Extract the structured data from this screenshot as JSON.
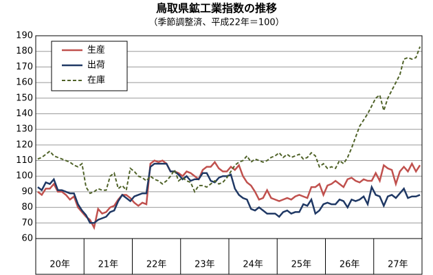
{
  "chart_data": {
    "type": "line",
    "title": "鳥取県鉱工業指数の推移",
    "subtitle": "（季節調整済、平成22年＝100）",
    "categories": [
      null,
      null,
      null,
      null,
      null,
      null,
      "20年",
      null,
      null,
      null,
      null,
      null,
      null,
      null,
      null,
      null,
      null,
      null,
      "21年",
      null,
      null,
      null,
      null,
      null,
      null,
      null,
      null,
      null,
      null,
      null,
      "22年",
      null,
      null,
      null,
      null,
      null,
      null,
      null,
      null,
      null,
      null,
      null,
      "23年",
      null,
      null,
      null,
      null,
      null,
      null,
      null,
      null,
      null,
      null,
      null,
      "24年",
      null,
      null,
      null,
      null,
      null,
      null,
      null,
      null,
      null,
      null,
      null,
      "25年",
      null,
      null,
      null,
      null,
      null,
      null,
      null,
      null,
      null,
      null,
      null,
      "26年",
      null,
      null,
      null,
      null,
      null,
      null,
      null,
      null,
      null,
      null,
      null,
      "27年",
      null,
      null,
      null,
      null,
      null
    ],
    "series": [
      {
        "name": "生産",
        "color": "#c0504d",
        "dashed": false,
        "values": [
          90,
          88,
          92,
          92,
          95,
          90,
          90,
          88,
          85,
          87,
          80,
          77,
          74,
          72,
          67,
          79,
          76,
          77,
          80,
          81,
          85,
          88,
          88,
          86,
          83,
          81,
          83,
          82,
          108,
          110,
          109,
          110,
          108,
          103,
          103,
          102,
          100,
          103,
          102,
          100,
          98,
          104,
          106,
          106,
          109,
          105,
          103,
          103,
          106,
          104,
          107,
          100,
          96,
          94,
          90,
          85,
          86,
          91,
          86,
          85,
          84,
          85,
          86,
          85,
          87,
          88,
          87,
          86,
          93,
          93,
          95,
          88,
          94,
          95,
          97,
          95,
          93,
          98,
          99,
          97,
          96,
          98,
          97,
          97,
          102,
          97,
          107,
          105,
          104,
          95,
          103,
          106,
          103,
          108,
          103,
          107
        ]
      },
      {
        "name": "出荷",
        "color": "#1f3864",
        "dashed": false,
        "values": [
          93,
          91,
          96,
          95,
          98,
          91,
          91,
          90,
          89,
          89,
          82,
          78,
          75,
          70,
          70,
          72,
          73,
          74,
          77,
          78,
          84,
          88,
          86,
          84,
          87,
          88,
          89,
          89,
          106,
          108,
          108,
          108,
          108,
          103,
          103,
          101,
          98,
          100,
          97,
          98,
          98,
          102,
          102,
          97,
          96,
          99,
          100,
          100,
          101,
          92,
          88,
          86,
          85,
          79,
          78,
          80,
          78,
          76,
          76,
          76,
          74,
          77,
          78,
          76,
          77,
          77,
          82,
          81,
          85,
          76,
          78,
          82,
          83,
          82,
          82,
          85,
          84,
          80,
          85,
          84,
          85,
          87,
          82,
          93,
          88,
          87,
          81,
          87,
          88,
          86,
          89,
          92,
          86,
          87,
          87,
          88
        ]
      },
      {
        "name": "在庫",
        "color": "#4f6228",
        "dashed": true,
        "values": [
          111,
          112,
          114,
          116,
          113,
          112,
          111,
          110,
          109,
          107,
          106,
          108,
          93,
          89,
          90,
          92,
          91,
          91,
          100,
          102,
          92,
          94,
          91,
          105,
          103,
          100,
          99,
          97,
          100,
          98,
          97,
          95,
          97,
          100,
          104,
          97,
          99,
          97,
          96,
          90,
          94,
          94,
          93,
          95,
          97,
          95,
          96,
          99,
          103,
          107,
          109,
          110,
          113,
          109,
          111,
          110,
          109,
          110,
          112,
          113,
          115,
          112,
          114,
          112,
          113,
          114,
          111,
          112,
          115,
          113,
          106,
          108,
          105,
          106,
          105,
          110,
          108,
          112,
          118,
          125,
          132,
          136,
          140,
          145,
          150,
          152,
          142,
          150,
          155,
          160,
          165,
          175,
          176,
          175,
          176,
          183
        ]
      }
    ],
    "ylim": [
      60,
      190
    ],
    "yticks": [
      60,
      70,
      80,
      90,
      100,
      110,
      120,
      130,
      140,
      150,
      160,
      170,
      180,
      190
    ],
    "grid": true,
    "legend": "upper left"
  }
}
